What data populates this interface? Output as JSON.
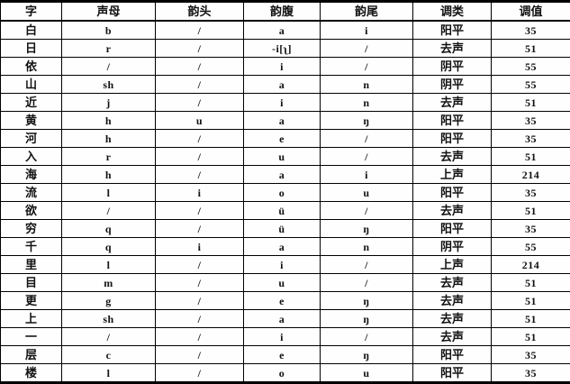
{
  "table": {
    "headers": [
      "字",
      "声母",
      "韵头",
      "韵腹",
      "韵尾",
      "调类",
      "调值"
    ],
    "rows": [
      [
        "白",
        "b",
        "/",
        "a",
        "i",
        "阳平",
        "35"
      ],
      [
        "日",
        "r",
        "/",
        "-i[ʅ]",
        "/",
        "去声",
        "51"
      ],
      [
        "依",
        "/",
        "/",
        "i",
        "/",
        "阴平",
        "55"
      ],
      [
        "山",
        "sh",
        "/",
        "a",
        "n",
        "阴平",
        "55"
      ],
      [
        "近",
        "j",
        "/",
        "i",
        "n",
        "去声",
        "51"
      ],
      [
        "黄",
        "h",
        "u",
        "a",
        "ŋ",
        "阳平",
        "35"
      ],
      [
        "河",
        "h",
        "/",
        "e",
        "/",
        "阳平",
        "35"
      ],
      [
        "入",
        "r",
        "/",
        "u",
        "/",
        "去声",
        "51"
      ],
      [
        "海",
        "h",
        "/",
        "a",
        "i",
        "上声",
        "214"
      ],
      [
        "流",
        "l",
        "i",
        "o",
        "u",
        "阳平",
        "35"
      ],
      [
        "欲",
        "/",
        "/",
        "ü",
        "/",
        "去声",
        "51"
      ],
      [
        "穷",
        "q",
        "/",
        "ü",
        "ŋ",
        "阳平",
        "35"
      ],
      [
        "千",
        "q",
        "i",
        "a",
        "n",
        "阴平",
        "55"
      ],
      [
        "里",
        "l",
        "/",
        "i",
        "/",
        "上声",
        "214"
      ],
      [
        "目",
        "m",
        "/",
        "u",
        "/",
        "去声",
        "51"
      ],
      [
        "更",
        "g",
        "/",
        "e",
        "ŋ",
        "去声",
        "51"
      ],
      [
        "上",
        "sh",
        "/",
        "a",
        "ŋ",
        "去声",
        "51"
      ],
      [
        "一",
        "/",
        "/",
        "i",
        "/",
        "去声",
        "51"
      ],
      [
        "层",
        "c",
        "/",
        "e",
        "ŋ",
        "阳平",
        "35"
      ],
      [
        "楼",
        "l",
        "/",
        "o",
        "u",
        "阳平",
        "35"
      ]
    ]
  }
}
